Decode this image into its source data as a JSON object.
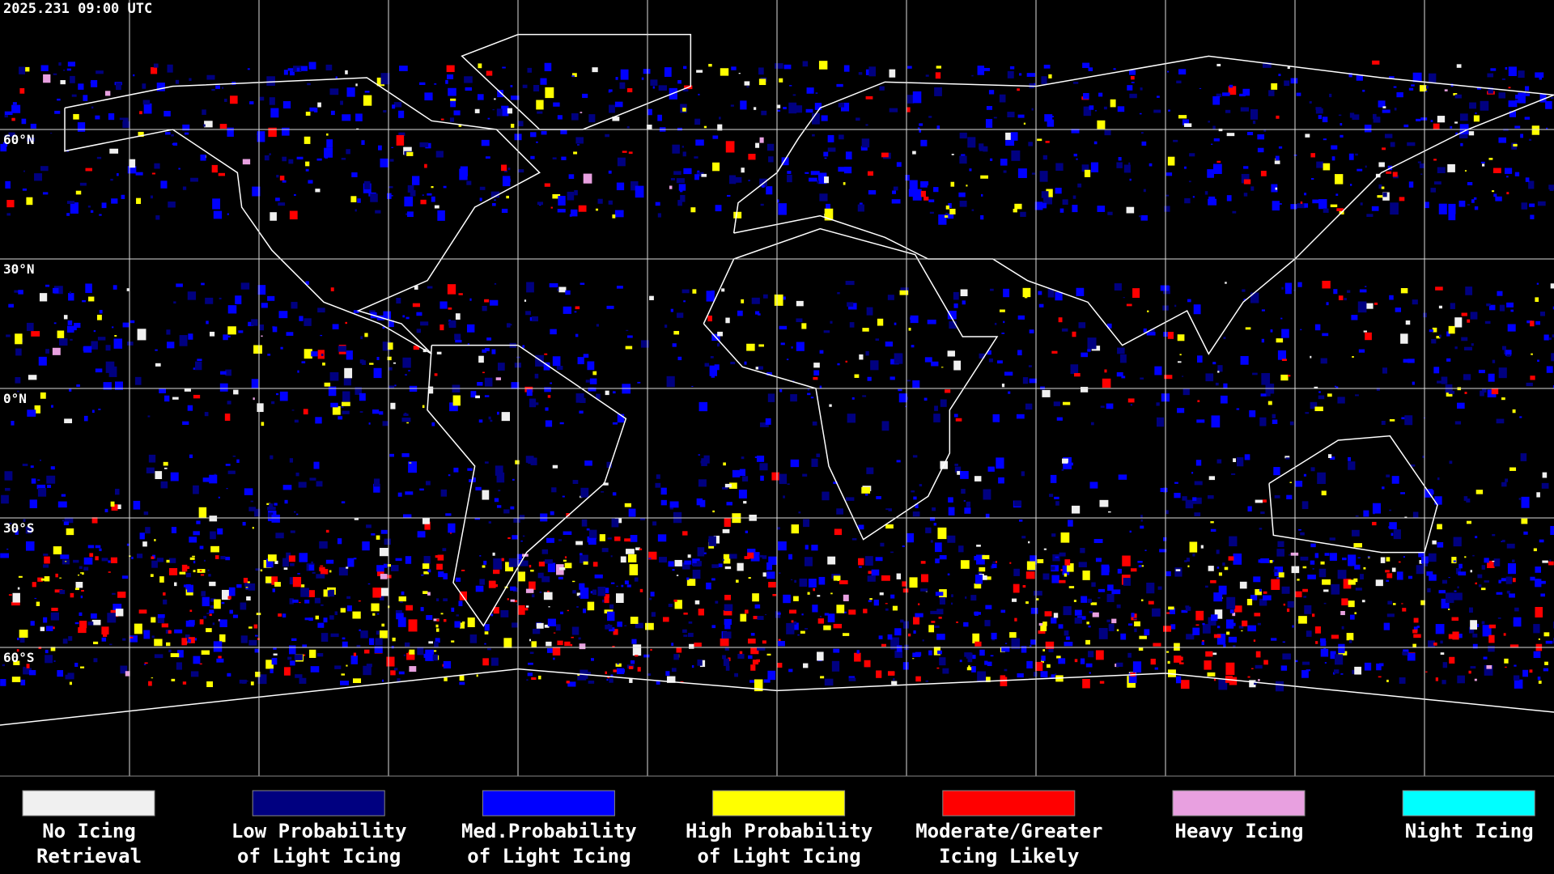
{
  "header": {
    "timestamp": "2025.231 09:00 UTC"
  },
  "map": {
    "latitude_labels": [
      "60°N",
      "30°N",
      "0°N",
      "30°S",
      "60°S"
    ]
  },
  "legend": {
    "items": [
      {
        "label_lines": [
          "No Icing",
          "Retrieval"
        ],
        "color": "#f0f0f0"
      },
      {
        "label_lines": [
          "Low Probability",
          "of Light Icing"
        ],
        "color": "#000080"
      },
      {
        "label_lines": [
          "Med.Probability",
          "of Light Icing"
        ],
        "color": "#0000ff"
      },
      {
        "label_lines": [
          "High Probability",
          "of Light Icing"
        ],
        "color": "#ffff00"
      },
      {
        "label_lines": [
          "Moderate/Greater",
          "Icing Likely"
        ],
        "color": "#ff0000"
      },
      {
        "label_lines": [
          "Heavy Icing"
        ],
        "color": "#e8a0e0"
      },
      {
        "label_lines": [
          "Night Icing"
        ],
        "color": "#00ffff"
      }
    ]
  }
}
